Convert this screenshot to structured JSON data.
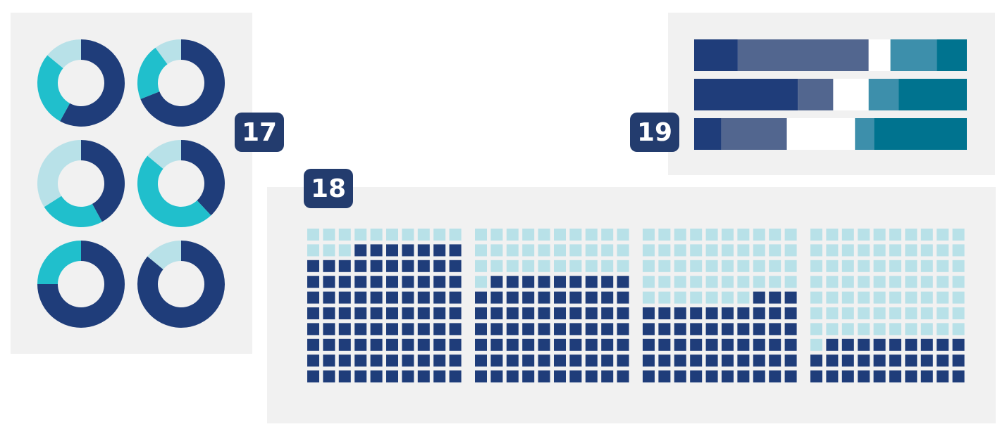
{
  "badges": {
    "donuts": "17",
    "waffles": "18",
    "bars": "19"
  },
  "colors": {
    "navy": "#1f3d7a",
    "teal": "#20bfcc",
    "light": "#b8e1e8",
    "slate": "#52668f",
    "steel": "#3d8fab",
    "petrol": "#00738f",
    "blank": "#ffffff",
    "panel": "#f1f1f1",
    "badge": "#233c6e"
  },
  "chart_data": [
    {
      "type": "pie",
      "variant": "donut-grid",
      "donuts": [
        {
          "slices": [
            {
              "value": 58,
              "color": "navy"
            },
            {
              "value": 28,
              "color": "teal"
            },
            {
              "value": 14,
              "color": "light"
            }
          ]
        },
        {
          "slices": [
            {
              "value": 69,
              "color": "navy"
            },
            {
              "value": 21,
              "color": "teal"
            },
            {
              "value": 10,
              "color": "light"
            }
          ]
        },
        {
          "slices": [
            {
              "value": 42,
              "color": "navy"
            },
            {
              "value": 24,
              "color": "teal"
            },
            {
              "value": 34,
              "color": "light"
            }
          ]
        },
        {
          "slices": [
            {
              "value": 38,
              "color": "navy"
            },
            {
              "value": 48,
              "color": "teal"
            },
            {
              "value": 14,
              "color": "light"
            }
          ]
        },
        {
          "slices": [
            {
              "value": 75,
              "color": "navy"
            },
            {
              "value": 25,
              "color": "teal"
            }
          ]
        },
        {
          "slices": [
            {
              "value": 86,
              "color": "navy"
            },
            {
              "value": 14,
              "color": "light"
            }
          ]
        }
      ]
    },
    {
      "type": "waffle",
      "grid": {
        "rows": 10,
        "cols": 10
      },
      "filled_color": "navy",
      "empty_color": "light",
      "values": [
        87,
        69,
        53,
        29
      ]
    },
    {
      "type": "bar",
      "orientation": "horizontal",
      "stacked": true,
      "rows": [
        {
          "segments": [
            {
              "value": 16,
              "color": "navy"
            },
            {
              "value": 48,
              "color": "slate"
            },
            {
              "value": 8,
              "color": "blank"
            },
            {
              "value": 17,
              "color": "steel"
            },
            {
              "value": 11,
              "color": "petrol"
            }
          ]
        },
        {
          "segments": [
            {
              "value": 38,
              "color": "navy"
            },
            {
              "value": 13,
              "color": "slate"
            },
            {
              "value": 13,
              "color": "blank"
            },
            {
              "value": 11,
              "color": "steel"
            },
            {
              "value": 25,
              "color": "petrol"
            }
          ]
        },
        {
          "segments": [
            {
              "value": 10,
              "color": "navy"
            },
            {
              "value": 24,
              "color": "slate"
            },
            {
              "value": 25,
              "color": "blank"
            },
            {
              "value": 7,
              "color": "steel"
            },
            {
              "value": 34,
              "color": "petrol"
            }
          ]
        }
      ]
    }
  ]
}
